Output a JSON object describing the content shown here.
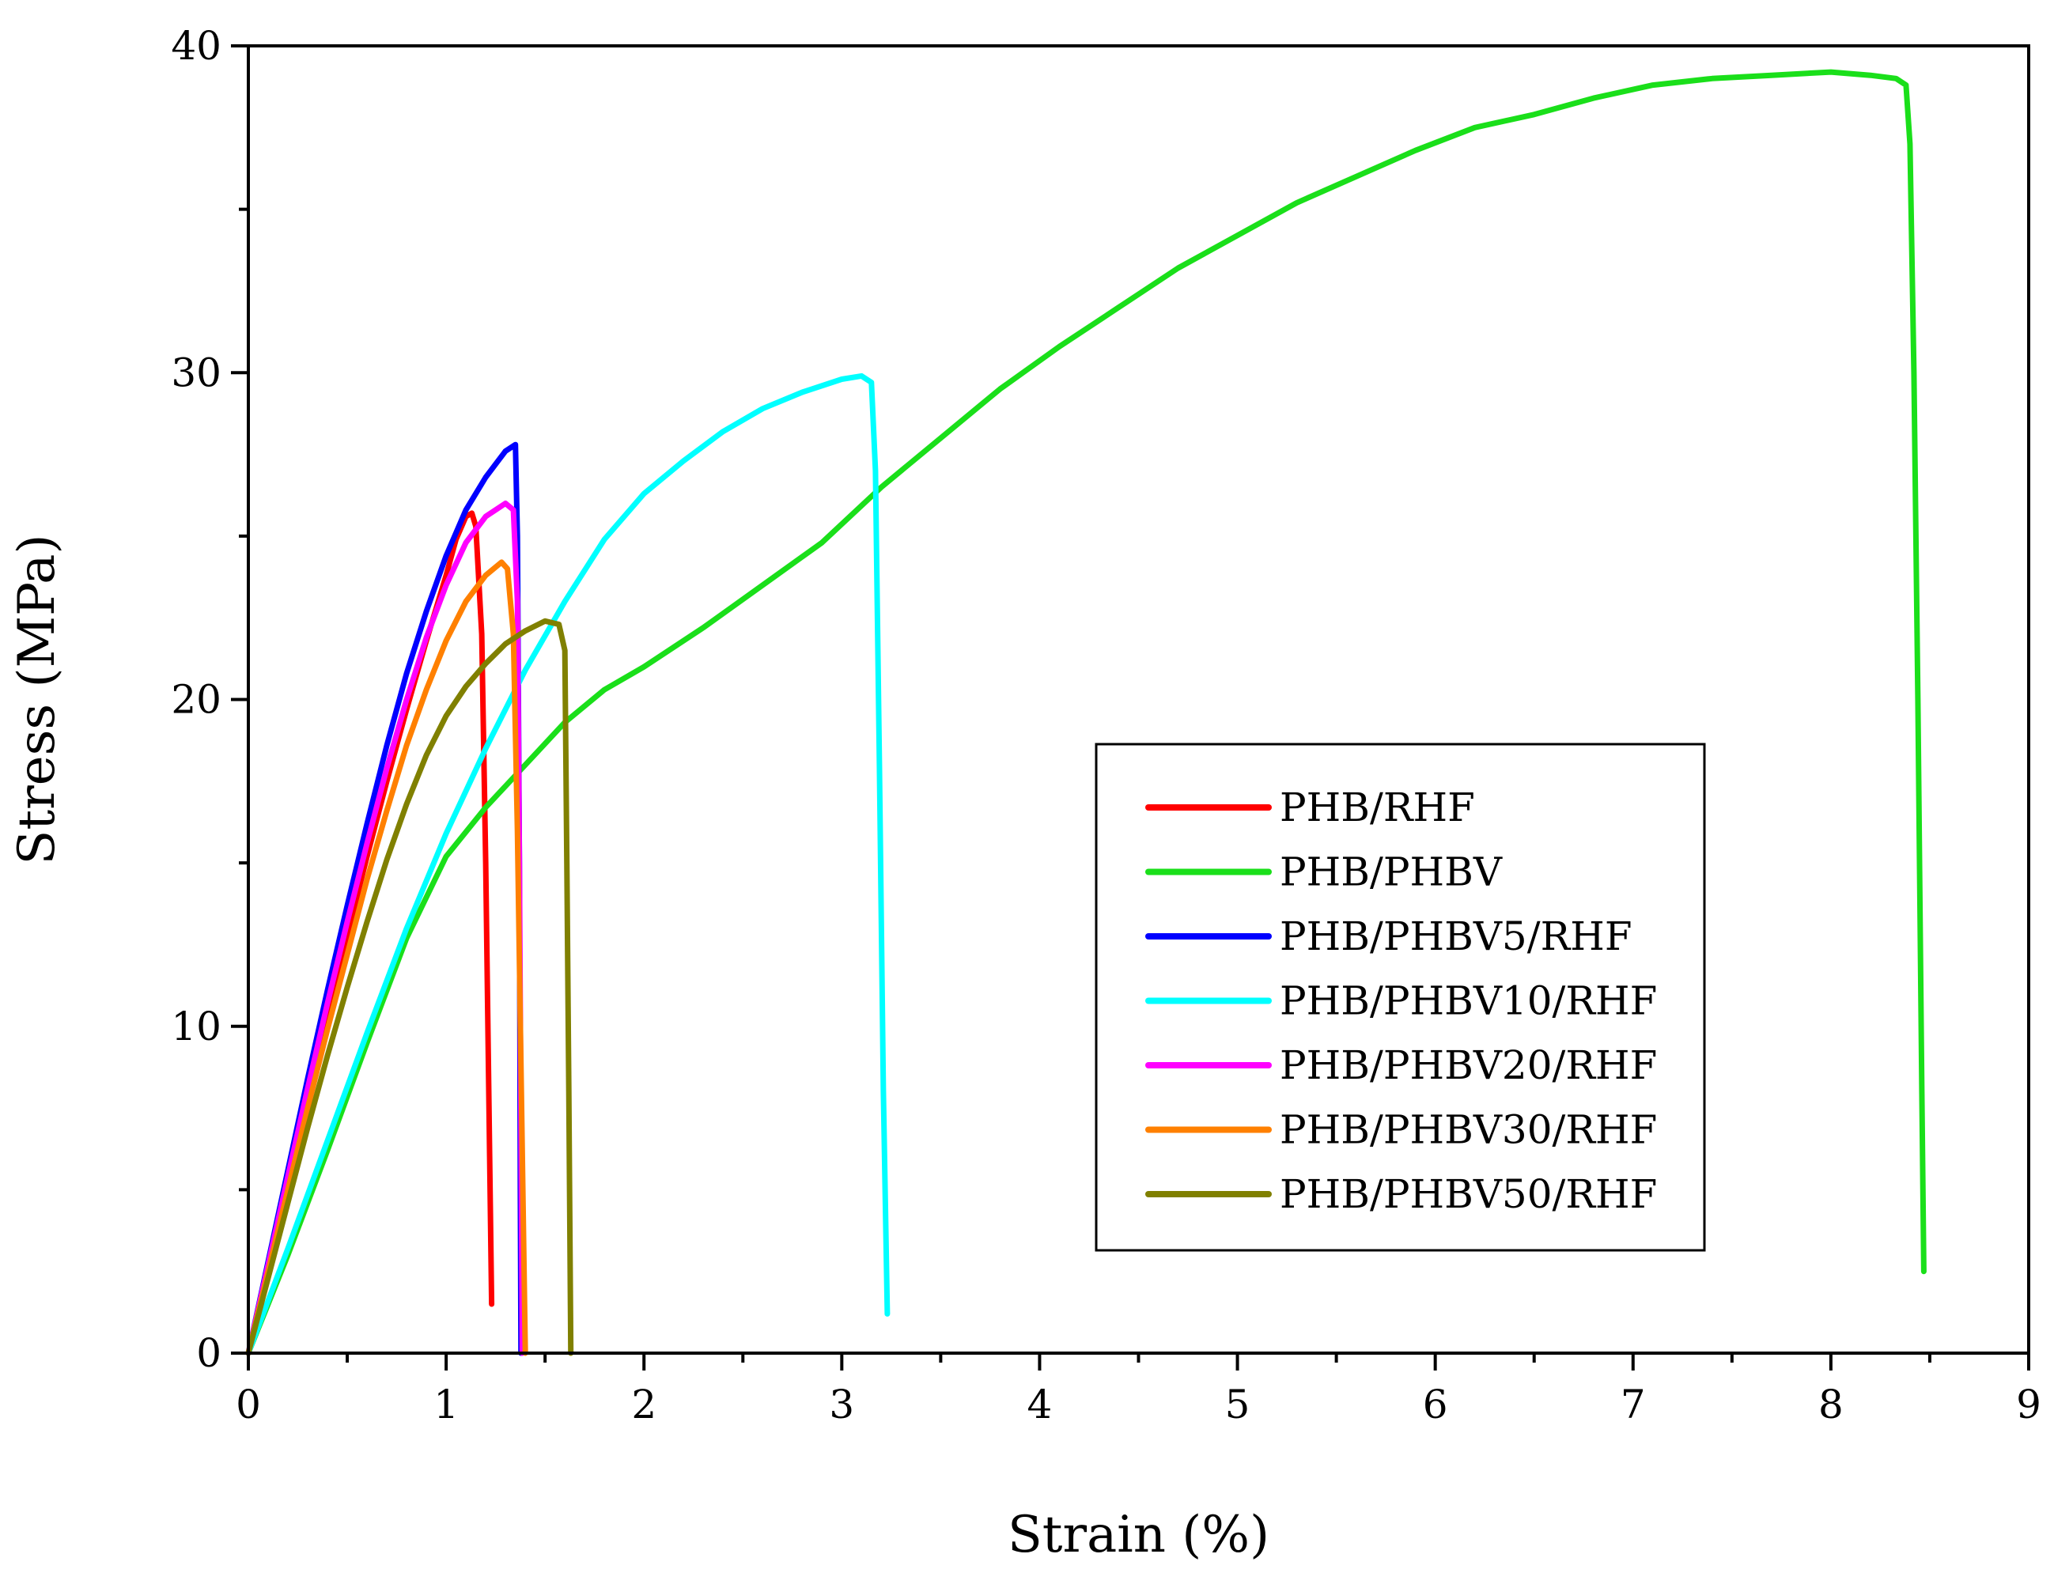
{
  "chart_data": {
    "type": "line",
    "title": "",
    "xlabel": "Strain (%)",
    "ylabel": "Stress (MPa)",
    "xlim": [
      0,
      9
    ],
    "ylim": [
      0,
      40
    ],
    "x_major_ticks": [
      0,
      1,
      2,
      3,
      4,
      5,
      6,
      7,
      8,
      9
    ],
    "y_major_ticks": [
      0,
      10,
      20,
      30,
      40
    ],
    "x_minor_step": 0.5,
    "y_minor_step": 5,
    "grid": false,
    "legend_position": "center-right",
    "series": [
      {
        "name": "PHB/RHF",
        "color": "#ff0000",
        "points": [
          [
            0,
            0
          ],
          [
            0.1,
            2.6
          ],
          [
            0.2,
            5.2
          ],
          [
            0.3,
            7.8
          ],
          [
            0.4,
            10.3
          ],
          [
            0.5,
            12.8
          ],
          [
            0.6,
            15.2
          ],
          [
            0.7,
            17.5
          ],
          [
            0.8,
            19.7
          ],
          [
            0.9,
            21.8
          ],
          [
            1.0,
            23.8
          ],
          [
            1.05,
            24.9
          ],
          [
            1.1,
            25.6
          ],
          [
            1.13,
            25.7
          ],
          [
            1.15,
            25.3
          ],
          [
            1.18,
            22.0
          ],
          [
            1.2,
            15.0
          ],
          [
            1.22,
            6.0
          ],
          [
            1.23,
            1.5
          ]
        ]
      },
      {
        "name": "PHB/PHBV",
        "color": "#1adf1a",
        "points": [
          [
            0,
            0
          ],
          [
            0.2,
            3.0
          ],
          [
            0.4,
            6.2
          ],
          [
            0.6,
            9.5
          ],
          [
            0.8,
            12.7
          ],
          [
            1.0,
            15.2
          ],
          [
            1.2,
            16.7
          ],
          [
            1.4,
            18.0
          ],
          [
            1.6,
            19.3
          ],
          [
            1.8,
            20.3
          ],
          [
            2.0,
            21.0
          ],
          [
            2.3,
            22.2
          ],
          [
            2.6,
            23.5
          ],
          [
            2.9,
            24.8
          ],
          [
            3.2,
            26.5
          ],
          [
            3.5,
            28.0
          ],
          [
            3.8,
            29.5
          ],
          [
            4.1,
            30.8
          ],
          [
            4.4,
            32.0
          ],
          [
            4.7,
            33.2
          ],
          [
            5.0,
            34.2
          ],
          [
            5.3,
            35.2
          ],
          [
            5.6,
            36.0
          ],
          [
            5.9,
            36.8
          ],
          [
            6.2,
            37.5
          ],
          [
            6.5,
            37.9
          ],
          [
            6.8,
            38.4
          ],
          [
            7.1,
            38.8
          ],
          [
            7.4,
            39.0
          ],
          [
            7.7,
            39.1
          ],
          [
            8.0,
            39.2
          ],
          [
            8.2,
            39.1
          ],
          [
            8.33,
            39.0
          ],
          [
            8.38,
            38.8
          ],
          [
            8.4,
            37.0
          ],
          [
            8.42,
            30.0
          ],
          [
            8.44,
            20.0
          ],
          [
            8.46,
            8.0
          ],
          [
            8.47,
            2.5
          ]
        ]
      },
      {
        "name": "PHB/PHBV5/RHF",
        "color": "#0000ff",
        "points": [
          [
            0,
            0
          ],
          [
            0.1,
            2.8
          ],
          [
            0.2,
            5.6
          ],
          [
            0.3,
            8.4
          ],
          [
            0.4,
            11.1
          ],
          [
            0.5,
            13.7
          ],
          [
            0.6,
            16.2
          ],
          [
            0.7,
            18.6
          ],
          [
            0.8,
            20.8
          ],
          [
            0.9,
            22.7
          ],
          [
            1.0,
            24.4
          ],
          [
            1.1,
            25.8
          ],
          [
            1.2,
            26.8
          ],
          [
            1.3,
            27.6
          ],
          [
            1.35,
            27.8
          ],
          [
            1.36,
            25.0
          ],
          [
            1.37,
            15.0
          ],
          [
            1.375,
            5.0
          ],
          [
            1.378,
            0
          ]
        ]
      },
      {
        "name": "PHB/PHBV10/RHF",
        "color": "#00ffff",
        "points": [
          [
            0,
            0
          ],
          [
            0.2,
            3.2
          ],
          [
            0.4,
            6.5
          ],
          [
            0.6,
            9.8
          ],
          [
            0.8,
            13.0
          ],
          [
            1.0,
            15.9
          ],
          [
            1.2,
            18.5
          ],
          [
            1.4,
            20.9
          ],
          [
            1.6,
            23.0
          ],
          [
            1.8,
            24.9
          ],
          [
            2.0,
            26.3
          ],
          [
            2.2,
            27.3
          ],
          [
            2.4,
            28.2
          ],
          [
            2.6,
            28.9
          ],
          [
            2.8,
            29.4
          ],
          [
            3.0,
            29.8
          ],
          [
            3.1,
            29.9
          ],
          [
            3.15,
            29.7
          ],
          [
            3.17,
            27.0
          ],
          [
            3.19,
            18.0
          ],
          [
            3.21,
            8.0
          ],
          [
            3.23,
            1.2
          ]
        ]
      },
      {
        "name": "PHB/PHBV20/RHF",
        "color": "#ff00ff",
        "points": [
          [
            0,
            0
          ],
          [
            0.1,
            2.7
          ],
          [
            0.2,
            5.4
          ],
          [
            0.3,
            8.1
          ],
          [
            0.4,
            10.7
          ],
          [
            0.5,
            13.2
          ],
          [
            0.6,
            15.6
          ],
          [
            0.7,
            17.9
          ],
          [
            0.8,
            20.0
          ],
          [
            0.9,
            21.9
          ],
          [
            1.0,
            23.5
          ],
          [
            1.1,
            24.8
          ],
          [
            1.2,
            25.6
          ],
          [
            1.3,
            26.0
          ],
          [
            1.34,
            25.8
          ],
          [
            1.36,
            23.0
          ],
          [
            1.37,
            15.0
          ],
          [
            1.38,
            5.0
          ],
          [
            1.385,
            0
          ]
        ]
      },
      {
        "name": "PHB/PHBV30/RHF",
        "color": "#ff8000",
        "points": [
          [
            0,
            0
          ],
          [
            0.1,
            2.5
          ],
          [
            0.2,
            5.0
          ],
          [
            0.3,
            7.5
          ],
          [
            0.4,
            9.9
          ],
          [
            0.5,
            12.2
          ],
          [
            0.6,
            14.5
          ],
          [
            0.7,
            16.6
          ],
          [
            0.8,
            18.6
          ],
          [
            0.9,
            20.3
          ],
          [
            1.0,
            21.8
          ],
          [
            1.1,
            23.0
          ],
          [
            1.2,
            23.8
          ],
          [
            1.28,
            24.2
          ],
          [
            1.31,
            24.0
          ],
          [
            1.34,
            22.0
          ],
          [
            1.36,
            16.0
          ],
          [
            1.38,
            8.0
          ],
          [
            1.4,
            0
          ]
        ]
      },
      {
        "name": "PHB/PHBV50/RHF",
        "color": "#808000",
        "points": [
          [
            0,
            0
          ],
          [
            0.1,
            2.3
          ],
          [
            0.2,
            4.6
          ],
          [
            0.3,
            6.9
          ],
          [
            0.4,
            9.1
          ],
          [
            0.5,
            11.2
          ],
          [
            0.6,
            13.2
          ],
          [
            0.7,
            15.1
          ],
          [
            0.8,
            16.8
          ],
          [
            0.9,
            18.3
          ],
          [
            1.0,
            19.5
          ],
          [
            1.1,
            20.4
          ],
          [
            1.2,
            21.1
          ],
          [
            1.3,
            21.7
          ],
          [
            1.4,
            22.1
          ],
          [
            1.5,
            22.4
          ],
          [
            1.57,
            22.3
          ],
          [
            1.6,
            21.5
          ],
          [
            1.61,
            15.0
          ],
          [
            1.62,
            8.0
          ],
          [
            1.63,
            0
          ]
        ]
      }
    ]
  }
}
